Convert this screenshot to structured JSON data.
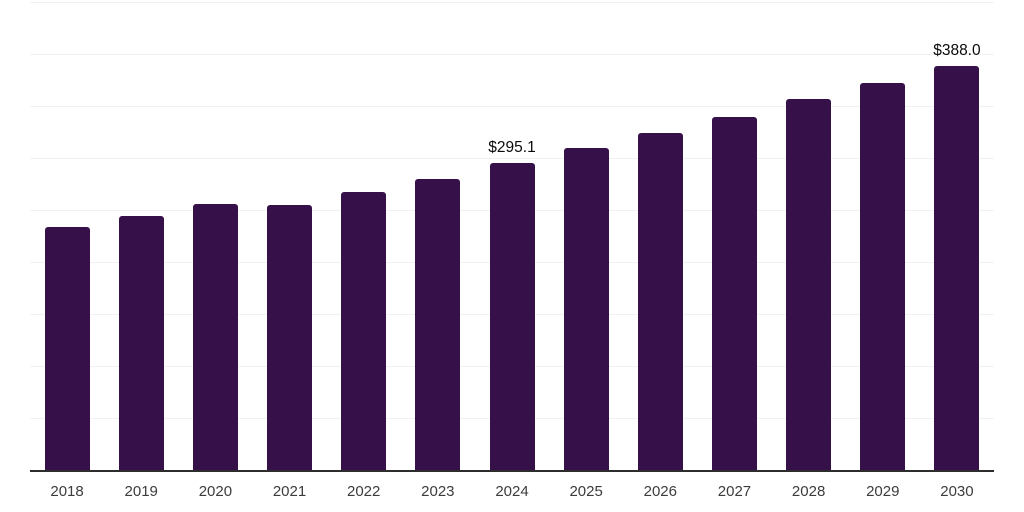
{
  "chart_data": {
    "type": "bar",
    "title": "",
    "xlabel": "",
    "ylabel": "",
    "categories": [
      "2018",
      "2019",
      "2020",
      "2021",
      "2022",
      "2023",
      "2024",
      "2025",
      "2026",
      "2027",
      "2028",
      "2029",
      "2030"
    ],
    "values": [
      233.6,
      244.1,
      255.6,
      254.6,
      267.1,
      280.0,
      295.1,
      309.5,
      324.5,
      339.8,
      356.7,
      372.3,
      388.0
    ],
    "labeled_points": [
      {
        "category": "2024",
        "label": "$295.1"
      },
      {
        "category": "2030",
        "label": "$388.0"
      }
    ],
    "ylim": [
      0,
      450
    ],
    "gridline_step": 50,
    "grid": true,
    "legend": false,
    "colors": {
      "bar": "#361149",
      "gridline": "#F1F1F1",
      "axis_line": "#2D2D2D",
      "tick_label": "#3C3C3C",
      "data_label": "#0A0A0A"
    }
  }
}
